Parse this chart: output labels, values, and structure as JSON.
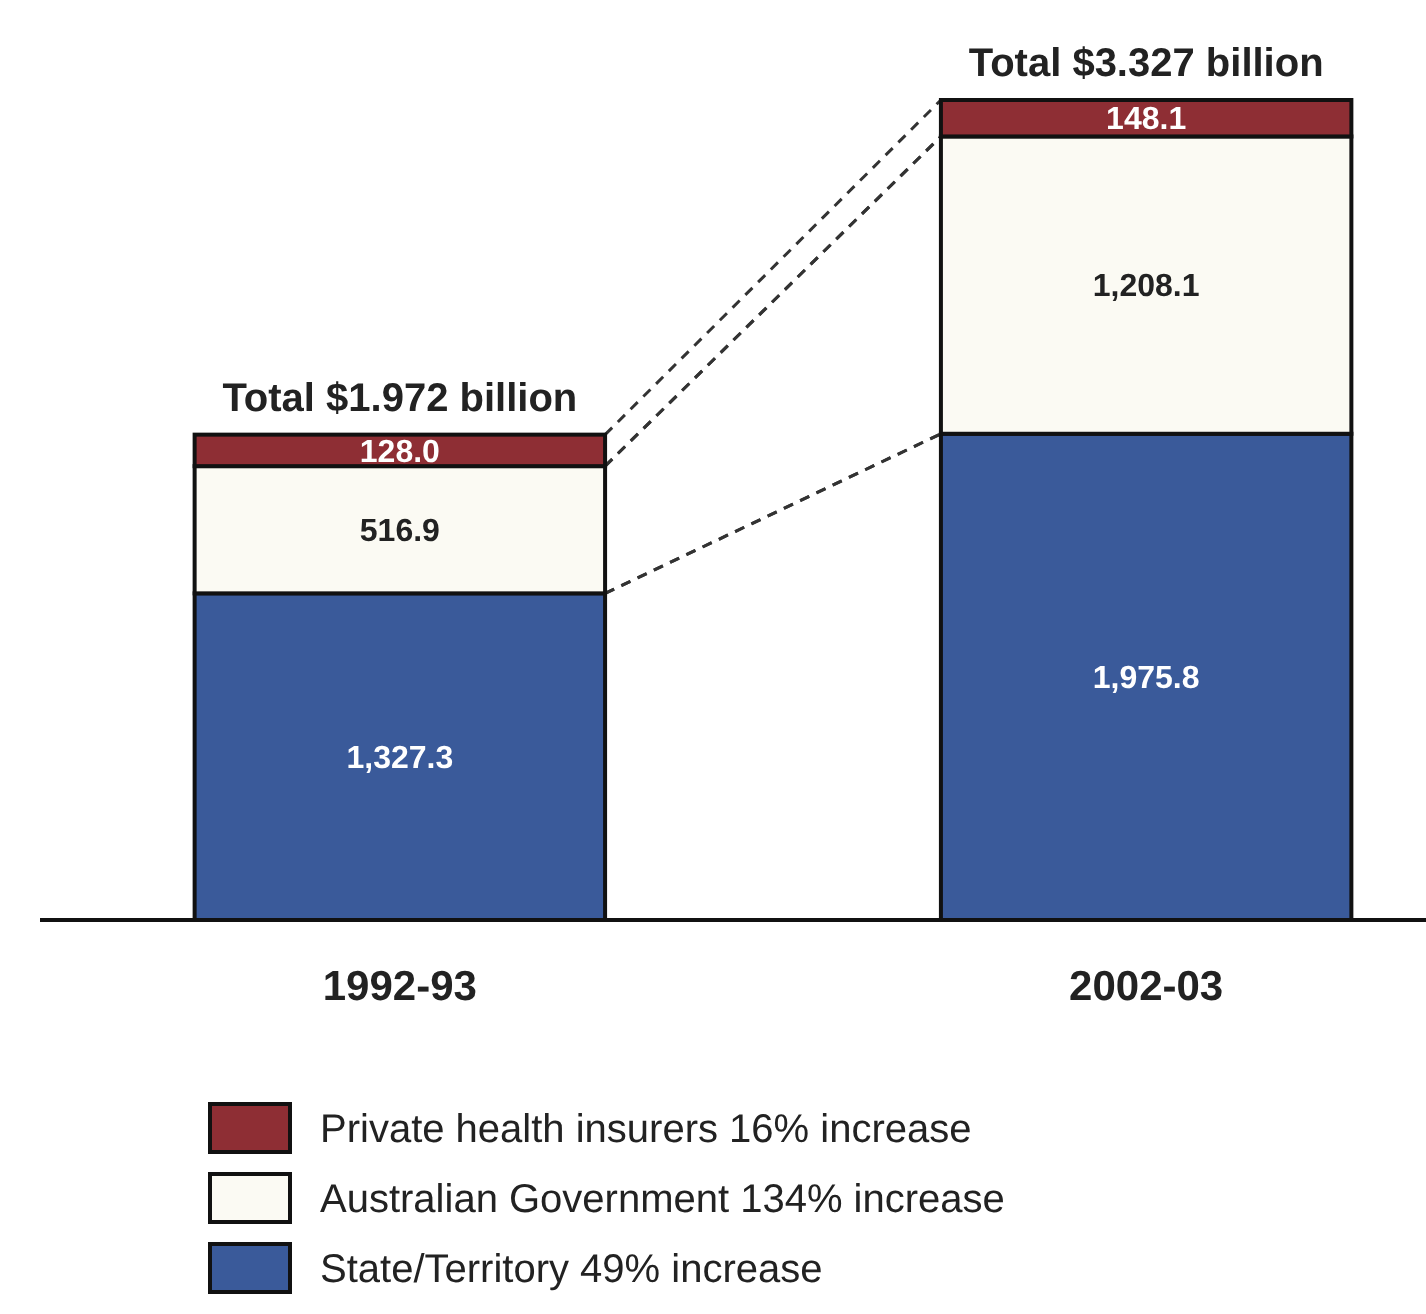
{
  "chart_data": {
    "type": "bar",
    "stacked": true,
    "categories": [
      "1992-93",
      "2002-03"
    ],
    "series": [
      {
        "name": "State/Territory 49% increase",
        "color": "#3a5a9a",
        "values": [
          1327.3,
          1975.8
        ],
        "value_labels": [
          "1,327.3",
          "1,975.8"
        ]
      },
      {
        "name": "Australian Government 134% increase",
        "color": "#fbfaf3",
        "values": [
          516.9,
          1208.1
        ],
        "value_labels": [
          "516.9",
          "1,208.1"
        ]
      },
      {
        "name": "Private health insurers 16% increase",
        "color": "#8e2e34",
        "values": [
          128.0,
          148.1
        ],
        "value_labels": [
          "128.0",
          "148.1"
        ]
      }
    ],
    "totals": [
      "Total $1.972 billion",
      "Total $3.327 billion"
    ],
    "legend": "bottom"
  }
}
